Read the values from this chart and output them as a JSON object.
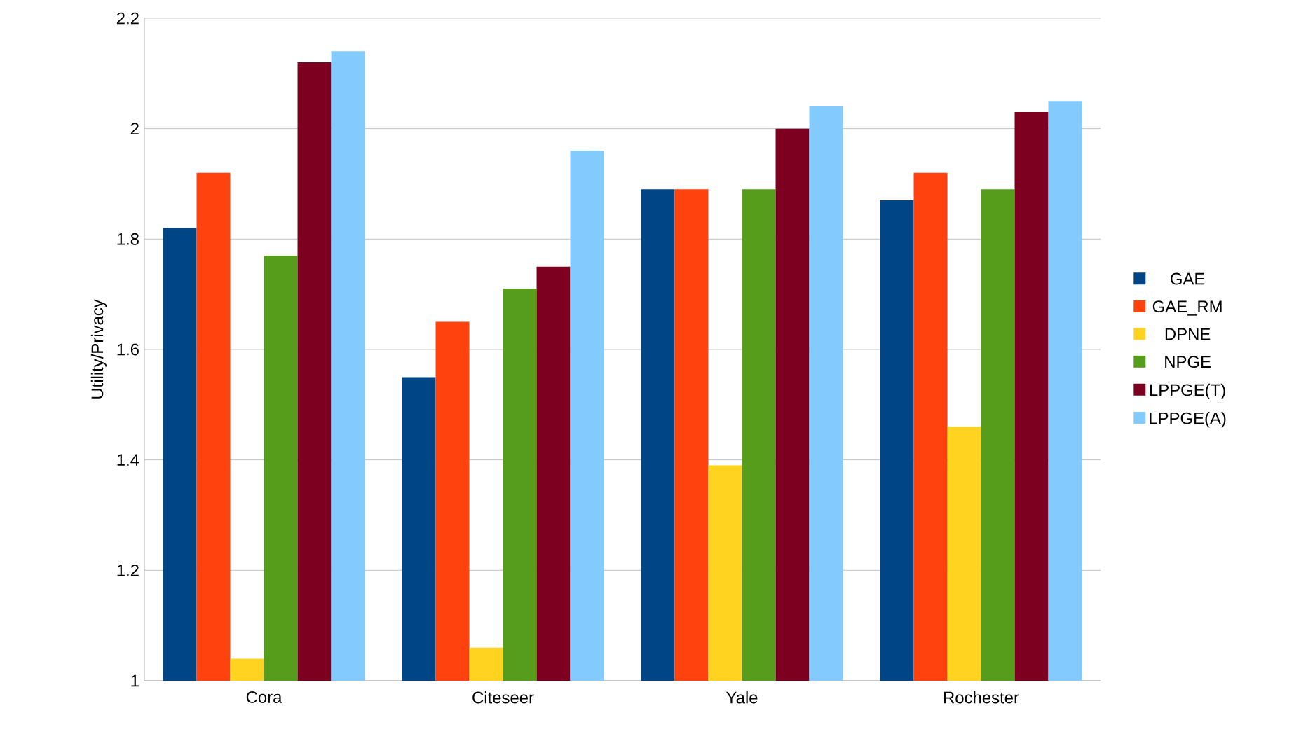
{
  "chart_data": {
    "type": "bar",
    "ylabel": "Utility/Privacy",
    "categories": [
      "Cora",
      "Citeseer",
      "Yale",
      "Rochester"
    ],
    "series": [
      {
        "name": "GAE",
        "color": "#004586",
        "values": [
          1.82,
          1.55,
          1.89,
          1.87
        ]
      },
      {
        "name": "GAE_RM",
        "color": "#ff420e",
        "values": [
          1.92,
          1.65,
          1.89,
          1.92
        ]
      },
      {
        "name": "DPNE",
        "color": "#ffd320",
        "values": [
          1.04,
          1.06,
          1.39,
          1.46
        ]
      },
      {
        "name": "NPGE",
        "color": "#579d1c",
        "values": [
          1.77,
          1.71,
          1.89,
          1.89
        ]
      },
      {
        "name": "LPPGE(T)",
        "color": "#7e0021",
        "values": [
          2.12,
          1.75,
          2.0,
          2.03
        ]
      },
      {
        "name": "LPPGE(A)",
        "color": "#83caff",
        "values": [
          2.14,
          1.96,
          2.04,
          2.05
        ]
      }
    ],
    "ylim": [
      1,
      2.2
    ],
    "yticks": [
      1,
      1.2,
      1.4,
      1.6,
      1.8,
      2,
      2.2
    ],
    "grid": "y",
    "legend": "right"
  }
}
